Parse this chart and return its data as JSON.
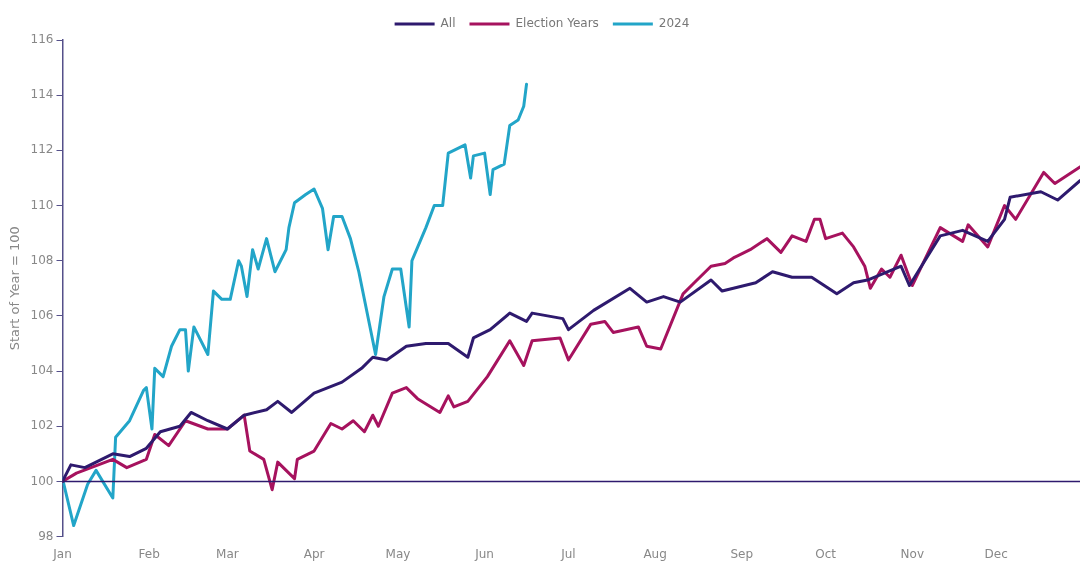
{
  "chart_data": {
    "type": "line",
    "ylabel": "Start of Year = 100",
    "legend": "top",
    "grid": false,
    "marker": "none",
    "line_style": "solid",
    "xlim": [
      "--01-01",
      "--12-31"
    ],
    "xticks": [
      {
        "value": "--01-01",
        "label": "Jan"
      },
      {
        "value": "--02-01",
        "label": "Feb"
      },
      {
        "value": "--03-01",
        "label": "Mar"
      },
      {
        "value": "--04-01",
        "label": "Apr"
      },
      {
        "value": "--05-01",
        "label": "May"
      },
      {
        "value": "--06-01",
        "label": "Jun"
      },
      {
        "value": "--07-01",
        "label": "Jul"
      },
      {
        "value": "--08-01",
        "label": "Aug"
      },
      {
        "value": "--09-01",
        "label": "Sep"
      },
      {
        "value": "--10-01",
        "label": "Oct"
      },
      {
        "value": "--11-01",
        "label": "Nov"
      },
      {
        "value": "--12-01",
        "label": "Dec"
      }
    ],
    "ylim": [
      98,
      116
    ],
    "yticks": [
      98,
      100,
      102,
      104,
      106,
      108,
      110,
      112,
      114,
      116
    ],
    "ref_lines": [
      {
        "axis": "y",
        "value": 100,
        "color": "#2e1a6e"
      }
    ],
    "series": [
      {
        "name": "All",
        "color": "#2e1a6e",
        "x": [
          "--01-01",
          "--01-04",
          "--01-09",
          "--01-19",
          "--01-25",
          "--01-31",
          "--02-05",
          "--02-12",
          "--02-16",
          "--02-22",
          "--03-01",
          "--03-07",
          "--03-15",
          "--03-19",
          "--03-24",
          "--04-01",
          "--04-11",
          "--04-18",
          "--04-22",
          "--04-27",
          "--05-04",
          "--05-11",
          "--05-19",
          "--05-26",
          "--05-28",
          "--06-03",
          "--06-10",
          "--06-16",
          "--06-18",
          "--06-29",
          "--07-01",
          "--07-10",
          "--07-23",
          "--07-29",
          "--08-04",
          "--08-10",
          "--08-21",
          "--08-25",
          "--09-06",
          "--09-12",
          "--09-19",
          "--09-26",
          "--10-05",
          "--10-11",
          "--10-16",
          "--10-28",
          "--10-31",
          "--11-11",
          "--11-19",
          "--11-28",
          "--12-04",
          "--12-06",
          "--12-17",
          "--12-23",
          "--12-31"
        ],
        "values": [
          100,
          100.6,
          100.5,
          101.0,
          100.9,
          101.2,
          101.8,
          102.0,
          102.5,
          102.2,
          101.9,
          102.4,
          102.6,
          102.9,
          102.5,
          103.2,
          103.6,
          104.1,
          104.5,
          104.4,
          104.9,
          105.0,
          105.0,
          104.5,
          105.2,
          105.5,
          106.1,
          105.8,
          106.1,
          105.9,
          105.5,
          106.2,
          107.0,
          106.5,
          106.7,
          106.5,
          107.3,
          106.9,
          107.2,
          107.6,
          107.4,
          107.4,
          106.8,
          107.2,
          107.3,
          107.8,
          107.1,
          108.9,
          109.1,
          108.7,
          109.5,
          110.3,
          110.5,
          110.2,
          110.9
        ]
      },
      {
        "name": "Election Years",
        "color": "#a6125e",
        "x": [
          "--01-01",
          "--01-06",
          "--01-19",
          "--01-24",
          "--01-31",
          "--02-03",
          "--02-08",
          "--02-14",
          "--02-22",
          "--03-01",
          "--03-07",
          "--03-09",
          "--03-14",
          "--03-17",
          "--03-19",
          "--03-25",
          "--03-26",
          "--04-01",
          "--04-07",
          "--04-11",
          "--04-15",
          "--04-19",
          "--04-22",
          "--04-24",
          "--04-29",
          "--05-04",
          "--05-08",
          "--05-16",
          "--05-19",
          "--05-21",
          "--05-26",
          "--06-02",
          "--06-10",
          "--06-15",
          "--06-18",
          "--06-28",
          "--07-01",
          "--07-09",
          "--07-14",
          "--07-17",
          "--07-26",
          "--07-29",
          "--08-03",
          "--08-11",
          "--08-15",
          "--08-21",
          "--08-26",
          "--08-29",
          "--09-04",
          "--09-10",
          "--09-15",
          "--09-19",
          "--09-24",
          "--09-27",
          "--09-29",
          "--10-01",
          "--10-07",
          "--10-11",
          "--10-15",
          "--10-17",
          "--10-21",
          "--10-24",
          "--10-28",
          "--11-01",
          "--11-11",
          "--11-19",
          "--11-21",
          "--11-28",
          "--12-04",
          "--12-08",
          "--12-18",
          "--12-22",
          "--12-25",
          "--12-31"
        ],
        "values": [
          100,
          100.3,
          100.8,
          100.5,
          100.8,
          101.7,
          101.3,
          102.2,
          101.9,
          101.9,
          102.4,
          101.1,
          100.8,
          99.7,
          100.7,
          100.1,
          100.8,
          101.1,
          102.1,
          101.9,
          102.2,
          101.8,
          102.4,
          102.0,
          103.2,
          103.4,
          103.0,
          102.5,
          103.1,
          102.7,
          102.9,
          103.8,
          105.1,
          104.2,
          105.1,
          105.2,
          104.4,
          105.7,
          105.8,
          105.4,
          105.6,
          104.9,
          104.8,
          106.8,
          107.2,
          107.8,
          107.9,
          108.1,
          108.4,
          108.8,
          108.3,
          108.9,
          108.7,
          109.5,
          109.5,
          108.8,
          109.0,
          108.5,
          107.8,
          107.0,
          107.7,
          107.4,
          108.2,
          107.1,
          109.2,
          108.7,
          109.3,
          108.5,
          110.0,
          109.5,
          111.2,
          110.8,
          111.0,
          111.4
        ]
      },
      {
        "name": "2024",
        "color": "#22a5c8",
        "x": [
          "--01-01",
          "--01-05",
          "--01-10",
          "--01-13",
          "--01-19",
          "--01-20",
          "--01-25",
          "--01-30",
          "--01-31",
          "--02-02",
          "--02-03",
          "--02-06",
          "--02-09",
          "--02-12",
          "--02-14",
          "--02-15",
          "--02-17",
          "--02-22",
          "--02-24",
          "--02-27",
          "--03-02",
          "--03-05",
          "--03-06",
          "--03-08",
          "--03-10",
          "--03-12",
          "--03-15",
          "--03-18",
          "--03-22",
          "--03-23",
          "--03-25",
          "--03-29",
          "--04-01",
          "--04-04",
          "--04-06",
          "--04-08",
          "--04-11",
          "--04-14",
          "--04-17",
          "--04-23",
          "--04-26",
          "--04-29",
          "--05-02",
          "--05-05",
          "--05-06",
          "--05-11",
          "--05-14",
          "--05-17",
          "--05-19",
          "--05-25",
          "--05-27",
          "--05-28",
          "--06-01",
          "--06-03",
          "--06-04",
          "--06-08",
          "--06-10",
          "--06-13",
          "--06-15",
          "--06-16"
        ],
        "values": [
          100.1,
          98.4,
          99.9,
          100.4,
          99.4,
          101.6,
          102.2,
          103.3,
          103.4,
          101.9,
          104.1,
          103.8,
          104.9,
          105.5,
          105.5,
          104.0,
          105.6,
          104.6,
          106.9,
          106.6,
          106.6,
          108.0,
          107.8,
          106.7,
          108.4,
          107.7,
          108.8,
          107.6,
          108.4,
          109.2,
          110.1,
          110.4,
          110.6,
          109.9,
          108.4,
          109.6,
          109.6,
          108.8,
          107.6,
          104.6,
          106.7,
          107.7,
          107.7,
          105.6,
          108.0,
          109.2,
          110.0,
          110.0,
          111.9,
          112.2,
          111.0,
          111.8,
          111.9,
          110.4,
          111.3,
          111.5,
          112.9,
          113.1,
          113.6,
          114.4
        ]
      }
    ]
  }
}
